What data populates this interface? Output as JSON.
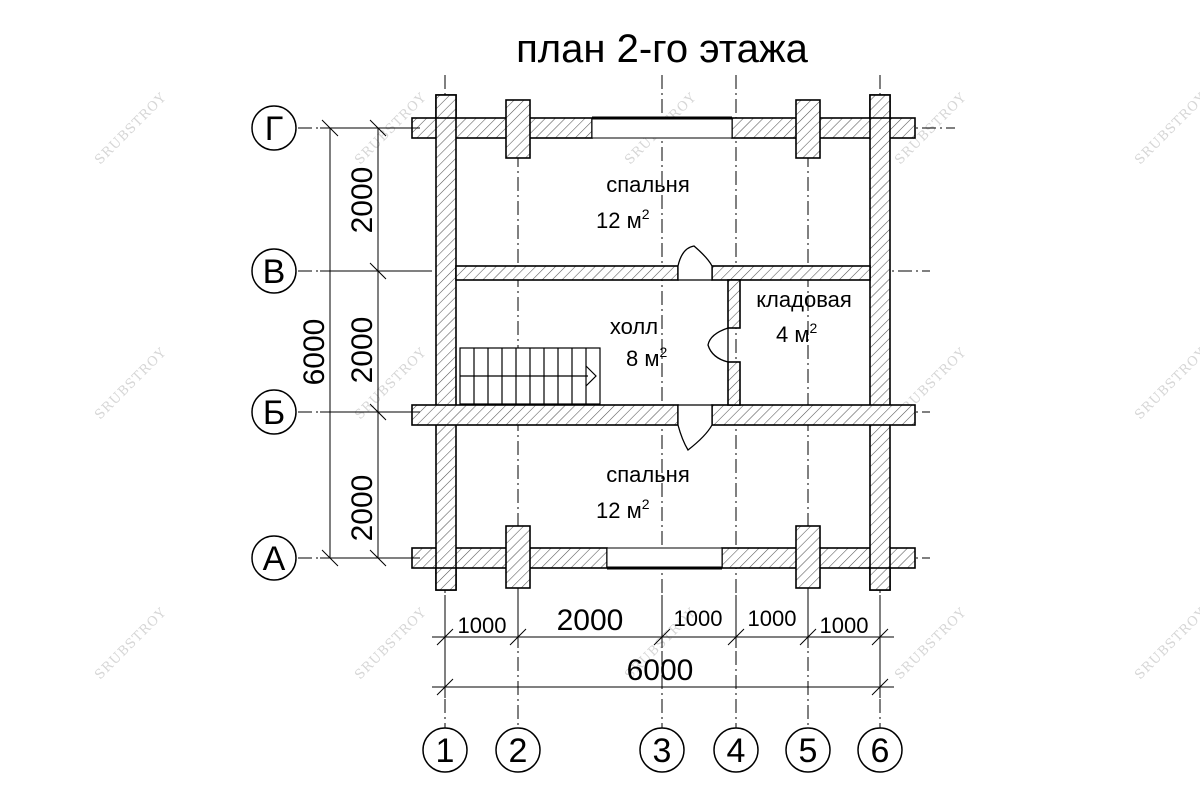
{
  "title": "план 2-го этажа",
  "rooms": {
    "bedroom_top": {
      "name": "спальня",
      "area": "12 м",
      "sup": "2"
    },
    "hall": {
      "name": "холл",
      "area": "8 м",
      "sup": "2"
    },
    "storage": {
      "name": "кладовая",
      "area": "4 м",
      "sup": "2"
    },
    "bedroom_bottom": {
      "name": "спальня",
      "area": "12 м",
      "sup": "2"
    }
  },
  "axes": {
    "rows": [
      "Г",
      "В",
      "Б",
      "А"
    ],
    "cols": [
      "1",
      "2",
      "3",
      "4",
      "5",
      "6"
    ]
  },
  "dimensions": {
    "vertical": {
      "seg1": "2000",
      "seg2": "2000",
      "seg3": "2000",
      "total": "6000"
    },
    "horizontal": {
      "seg1": "1000",
      "seg2": "2000",
      "seg3": "1000",
      "seg4": "1000",
      "seg5": "1000",
      "total": "6000"
    }
  },
  "watermark": "SRUBSTROY"
}
